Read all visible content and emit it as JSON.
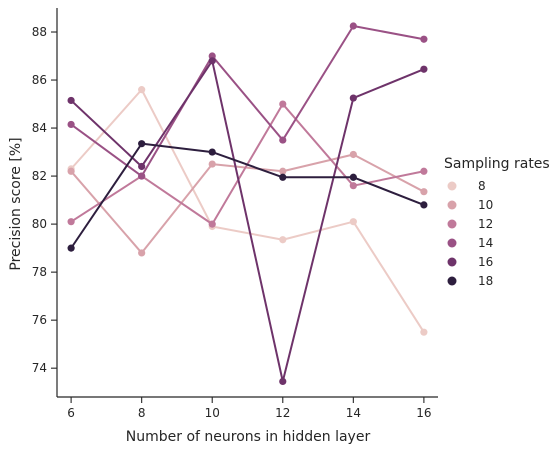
{
  "chart_data": {
    "type": "line",
    "title": "",
    "xlabel": "Number of neurons in hidden layer",
    "ylabel": "Precision score [%]",
    "x": [
      6,
      8,
      10,
      12,
      14,
      16
    ],
    "xlim": [
      5.6,
      16.4
    ],
    "ylim": [
      72.8,
      89.0
    ],
    "xticks": [
      "6",
      "8",
      "10",
      "12",
      "14",
      "16"
    ],
    "yticks": [
      "74",
      "76",
      "78",
      "80",
      "82",
      "84",
      "86",
      "88"
    ],
    "grid": false,
    "legend": {
      "title": "Sampling rates",
      "placement": "right"
    },
    "series": [
      {
        "name": "8",
        "color": "#eccbc6",
        "values": [
          82.3,
          85.6,
          79.9,
          79.35,
          80.1,
          75.5
        ]
      },
      {
        "name": "10",
        "color": "#d8a2aa",
        "values": [
          82.2,
          78.8,
          82.5,
          82.2,
          82.9,
          81.35
        ]
      },
      {
        "name": "12",
        "color": "#c0799a",
        "values": [
          80.1,
          82.0,
          80.0,
          85.0,
          81.6,
          82.2
        ]
      },
      {
        "name": "14",
        "color": "#9a5185",
        "values": [
          84.15,
          82.0,
          87.0,
          83.5,
          88.25,
          87.7
        ]
      },
      {
        "name": "16",
        "color": "#6e336a",
        "values": [
          85.15,
          82.4,
          86.8,
          73.45,
          85.25,
          86.45
        ]
      },
      {
        "name": "18",
        "color": "#2d1e3e",
        "values": [
          79.0,
          83.35,
          83.0,
          81.95,
          81.95,
          80.8
        ]
      }
    ]
  }
}
